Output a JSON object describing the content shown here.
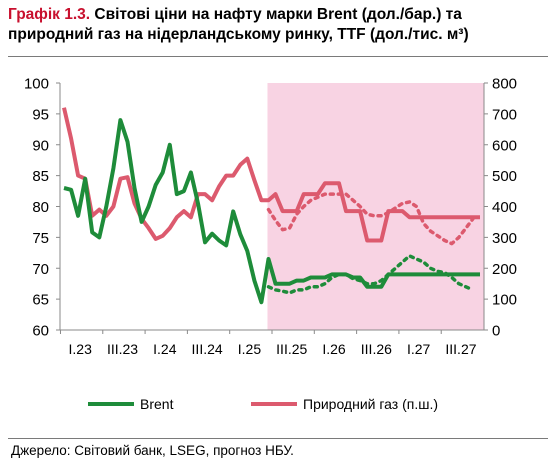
{
  "title": {
    "label": "Графік 1.3.",
    "text": "Світові ціни на нафту марки Brent (дол./бар.) та природний газ на нідерландському ринку, TTF (дол./тис. м³)"
  },
  "source": "Джерело: Світовий банк, LSEG, прогноз НБУ.",
  "colors": {
    "brent": "#1e8c3a",
    "gas": "#dc5a6e",
    "forecast_shade": "#f8d3e3",
    "axis": "#8a8a8a"
  },
  "chart_data": {
    "type": "line",
    "x_tick_labels": [
      "I.23",
      "III.23",
      "I.24",
      "III.24",
      "I.25",
      "III.25",
      "I.26",
      "III.26",
      "I.27",
      "III.27"
    ],
    "x_tick_months": [
      0,
      6,
      12,
      18,
      24,
      30,
      36,
      42,
      48,
      54
    ],
    "x_range": [
      0,
      59
    ],
    "forecast_start_month": 29,
    "left_axis": {
      "range": [
        60,
        100
      ],
      "ticks": [
        "100",
        "95",
        "90",
        "85",
        "80",
        "75",
        "70",
        "65",
        "60"
      ]
    },
    "right_axis": {
      "label": "п.ш.",
      "range": [
        0,
        800
      ],
      "ticks": [
        "800",
        "700",
        "600",
        "500",
        "400",
        "300",
        "200",
        "100",
        "0"
      ]
    },
    "legend": [
      {
        "name": "Brent",
        "axis": "left"
      },
      {
        "name": "Природний газ (п.ш.)",
        "axis": "right"
      }
    ],
    "series": [
      {
        "name": "Brent",
        "axis": "left",
        "style": "solid",
        "points": [
          [
            0,
            83
          ],
          [
            1,
            82.7
          ],
          [
            2,
            78.5
          ],
          [
            3,
            84.5
          ],
          [
            4,
            75.8
          ],
          [
            5,
            75
          ],
          [
            6,
            80
          ],
          [
            7,
            86.2
          ],
          [
            8,
            94
          ],
          [
            9,
            90.5
          ],
          [
            10,
            83
          ],
          [
            11,
            77.5
          ],
          [
            12,
            80
          ],
          [
            13,
            83.5
          ],
          [
            14,
            85.5
          ],
          [
            15,
            90
          ],
          [
            16,
            82
          ],
          [
            17,
            82.5
          ],
          [
            18,
            85.5
          ],
          [
            19,
            80.5
          ],
          [
            20,
            74.2
          ],
          [
            21,
            75.6
          ],
          [
            22,
            74.5
          ],
          [
            23,
            73.7
          ],
          [
            24,
            79.2
          ],
          [
            25,
            75.5
          ],
          [
            26,
            72.8
          ],
          [
            27,
            68
          ],
          [
            28,
            64.5
          ],
          [
            29,
            71.5
          ],
          [
            30,
            67.5
          ],
          [
            31,
            67.5
          ],
          [
            32,
            67.5
          ],
          [
            33,
            68
          ],
          [
            34,
            68
          ],
          [
            35,
            68.5
          ],
          [
            36,
            68.5
          ],
          [
            37,
            68.5
          ],
          [
            38,
            69
          ],
          [
            39,
            69
          ],
          [
            40,
            69
          ],
          [
            41,
            68.5
          ],
          [
            42,
            68.5
          ],
          [
            43,
            67
          ],
          [
            44,
            67
          ],
          [
            45,
            67
          ],
          [
            46,
            69
          ],
          [
            47,
            69
          ],
          [
            48,
            69
          ],
          [
            49,
            69
          ],
          [
            50,
            69
          ],
          [
            51,
            69
          ],
          [
            52,
            69
          ],
          [
            53,
            69
          ],
          [
            54,
            69
          ],
          [
            55,
            69
          ],
          [
            56,
            69
          ],
          [
            57,
            69
          ],
          [
            58,
            69
          ],
          [
            59,
            69
          ]
        ]
      },
      {
        "name": "Природний газ (п.ш.)",
        "axis": "right",
        "style": "solid",
        "points": [
          [
            0,
            720
          ],
          [
            1,
            620
          ],
          [
            2,
            500
          ],
          [
            3,
            490
          ],
          [
            4,
            370
          ],
          [
            5,
            390
          ],
          [
            6,
            370
          ],
          [
            7,
            400
          ],
          [
            8,
            490
          ],
          [
            9,
            495
          ],
          [
            10,
            410
          ],
          [
            11,
            360
          ],
          [
            12,
            330
          ],
          [
            13,
            295
          ],
          [
            14,
            305
          ],
          [
            15,
            330
          ],
          [
            16,
            365
          ],
          [
            17,
            385
          ],
          [
            18,
            365
          ],
          [
            19,
            440
          ],
          [
            20,
            440
          ],
          [
            21,
            420
          ],
          [
            22,
            465
          ],
          [
            23,
            500
          ],
          [
            24,
            500
          ],
          [
            25,
            535
          ],
          [
            26,
            555
          ],
          [
            27,
            485
          ],
          [
            28,
            420
          ],
          [
            29,
            420
          ],
          [
            30,
            440
          ],
          [
            31,
            385
          ],
          [
            32,
            385
          ],
          [
            33,
            385
          ],
          [
            34,
            440
          ],
          [
            35,
            440
          ],
          [
            36,
            440
          ],
          [
            37,
            475
          ],
          [
            38,
            475
          ],
          [
            39,
            475
          ],
          [
            40,
            385
          ],
          [
            41,
            385
          ],
          [
            42,
            385
          ],
          [
            43,
            290
          ],
          [
            44,
            290
          ],
          [
            45,
            290
          ],
          [
            46,
            385
          ],
          [
            47,
            385
          ],
          [
            48,
            385
          ],
          [
            49,
            365
          ],
          [
            50,
            365
          ],
          [
            51,
            365
          ],
          [
            52,
            365
          ],
          [
            53,
            365
          ],
          [
            54,
            365
          ],
          [
            55,
            365
          ],
          [
            56,
            365
          ],
          [
            57,
            365
          ],
          [
            58,
            365
          ],
          [
            59,
            365
          ]
        ]
      },
      {
        "name": "",
        "axis": "left",
        "style": "dotted",
        "points": [
          [
            29,
            67
          ],
          [
            30,
            66.5
          ],
          [
            31,
            66.3
          ],
          [
            32,
            66
          ],
          [
            33,
            66.5
          ],
          [
            34,
            66.5
          ],
          [
            35,
            67
          ],
          [
            36,
            67
          ],
          [
            37,
            67.5
          ],
          [
            38,
            68.5
          ],
          [
            39,
            69
          ],
          [
            40,
            69
          ],
          [
            41,
            68.3
          ],
          [
            42,
            68
          ],
          [
            43,
            67.5
          ],
          [
            44,
            67.5
          ],
          [
            45,
            68
          ],
          [
            46,
            69
          ],
          [
            47,
            70
          ],
          [
            48,
            71
          ],
          [
            49,
            72
          ],
          [
            50,
            71.5
          ],
          [
            51,
            71
          ],
          [
            52,
            70
          ],
          [
            53,
            69.5
          ],
          [
            54,
            69.3
          ],
          [
            55,
            68.5
          ],
          [
            56,
            67.5
          ],
          [
            57,
            67
          ],
          [
            58,
            66.5
          ]
        ]
      },
      {
        "name": "",
        "axis": "right",
        "style": "dotted",
        "points": [
          [
            29,
            390
          ],
          [
            30,
            355
          ],
          [
            31,
            325
          ],
          [
            32,
            330
          ],
          [
            33,
            375
          ],
          [
            34,
            400
          ],
          [
            35,
            420
          ],
          [
            36,
            430
          ],
          [
            37,
            440
          ],
          [
            38,
            440
          ],
          [
            39,
            440
          ],
          [
            40,
            440
          ],
          [
            41,
            420
          ],
          [
            42,
            400
          ],
          [
            43,
            375
          ],
          [
            44,
            370
          ],
          [
            45,
            370
          ],
          [
            46,
            380
          ],
          [
            47,
            395
          ],
          [
            48,
            410
          ],
          [
            49,
            415
          ],
          [
            50,
            400
          ],
          [
            51,
            345
          ],
          [
            52,
            320
          ],
          [
            53,
            305
          ],
          [
            54,
            290
          ],
          [
            55,
            280
          ],
          [
            56,
            300
          ],
          [
            57,
            330
          ],
          [
            58,
            360
          ]
        ]
      }
    ],
    "grid": false,
    "legend_position": "bottom"
  }
}
